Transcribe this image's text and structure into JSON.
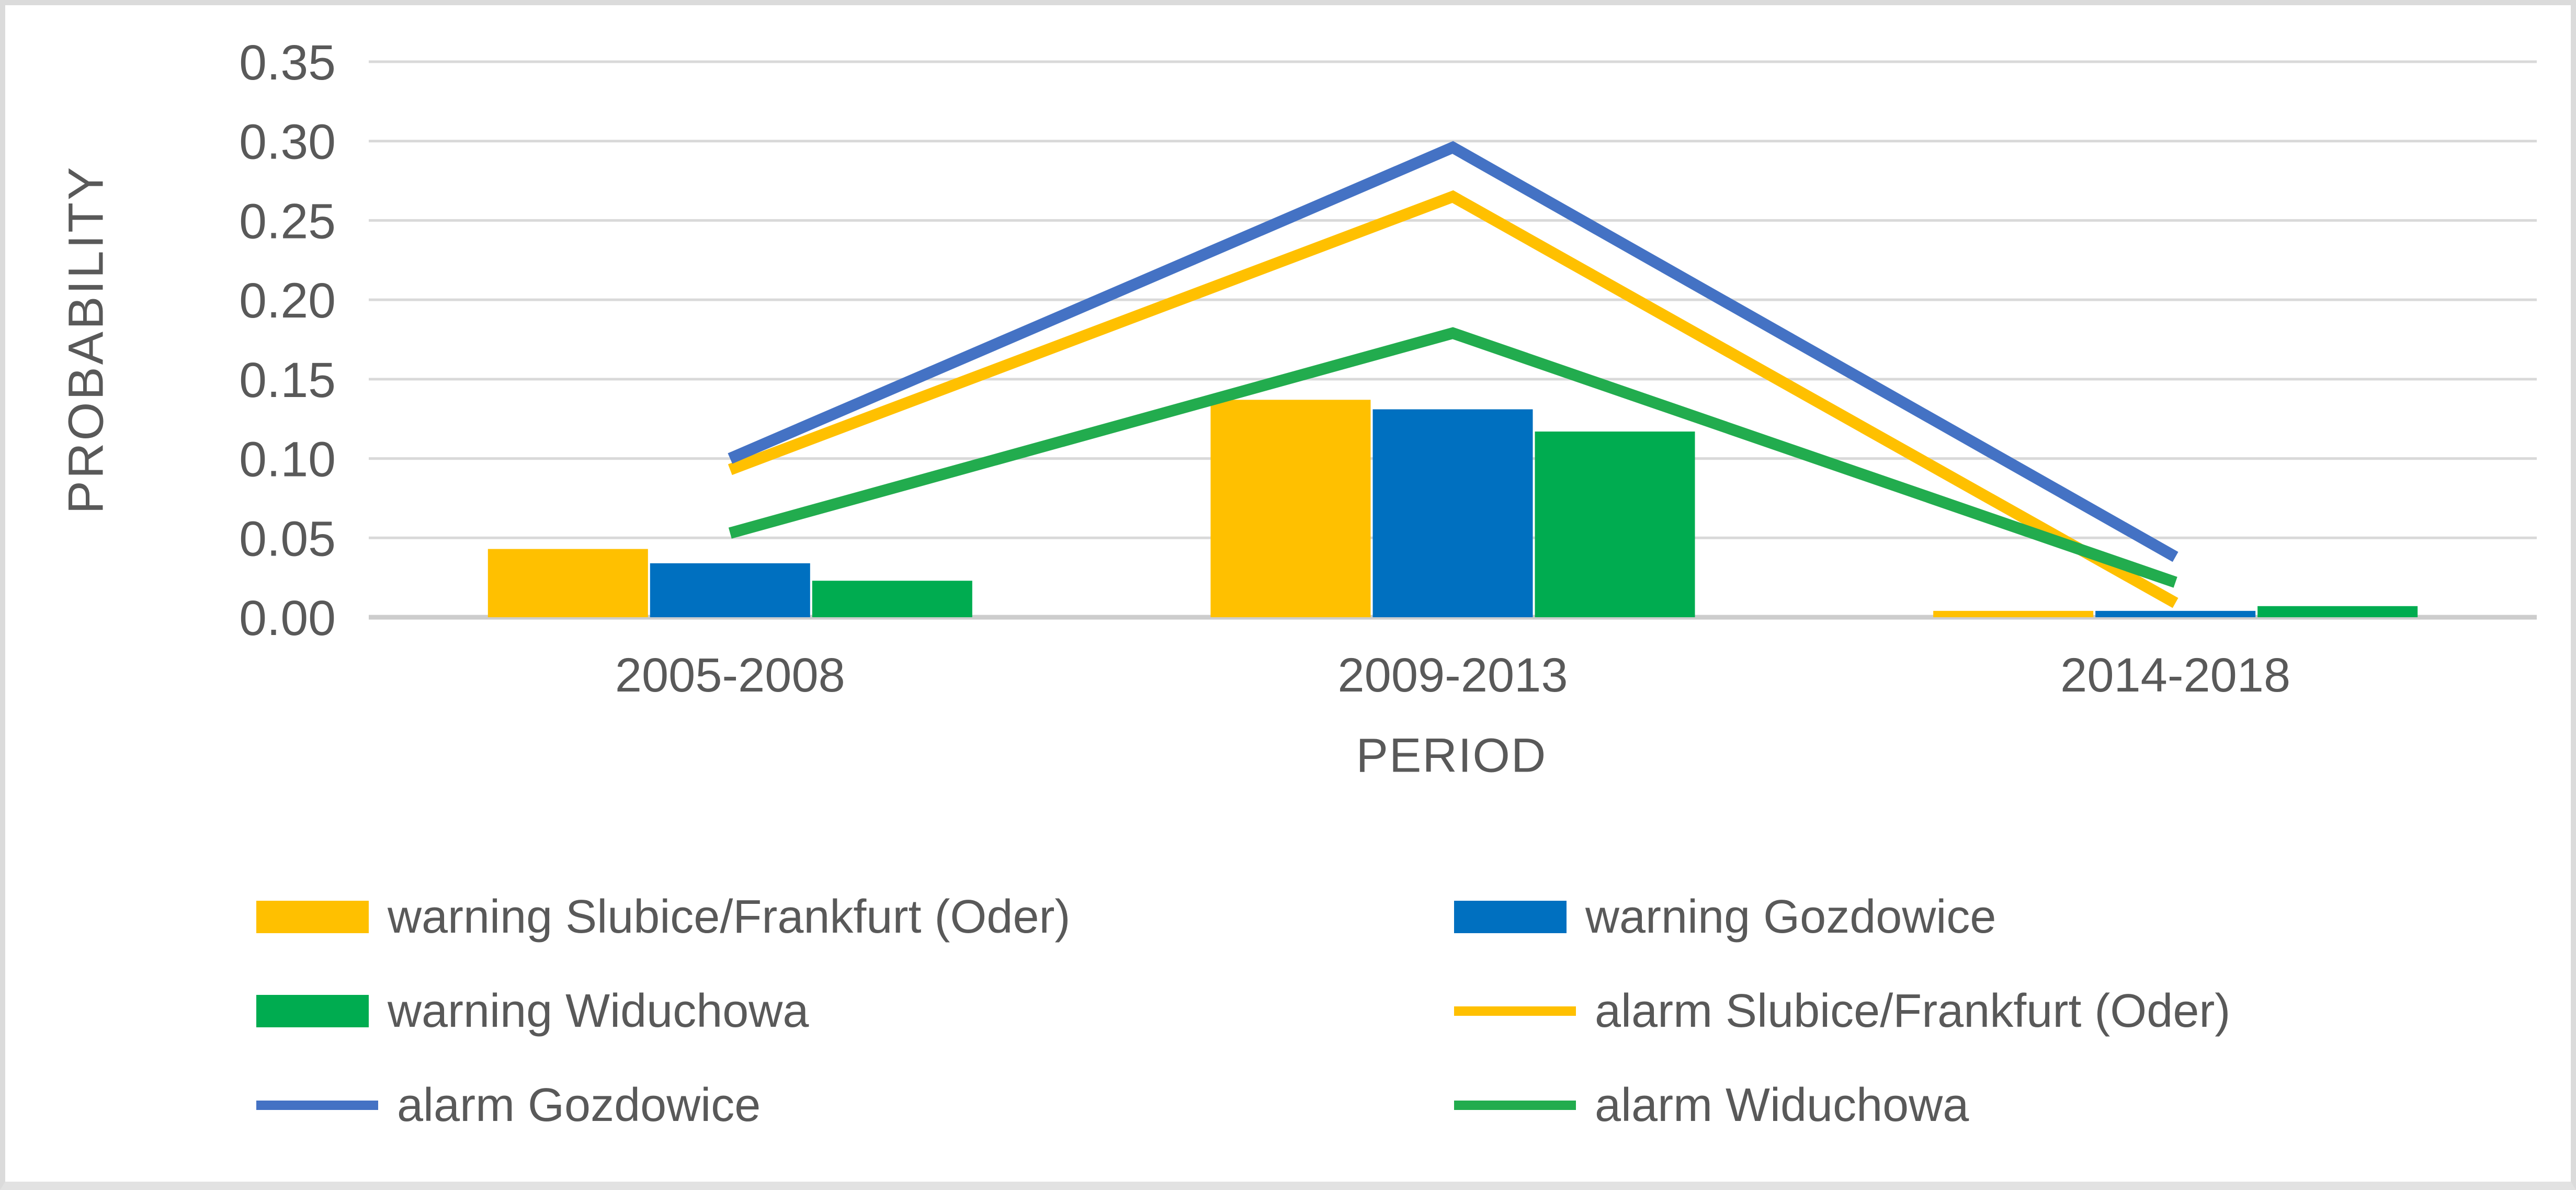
{
  "chart_data": {
    "type": "combo-bar-line",
    "title": "",
    "xlabel": "PERIOD",
    "ylabel": "PROBABILITY",
    "categories": [
      "2005-2008",
      "2009-2013",
      "2014-2018"
    ],
    "series": [
      {
        "name": "warning Slubice/Frankfurt (Oder)",
        "type": "bar",
        "color": "#FFC000",
        "values": [
          0.043,
          0.137,
          0.004
        ]
      },
      {
        "name": "warning Gozdowice",
        "type": "bar",
        "color": "#0070C0",
        "values": [
          0.034,
          0.131,
          0.004
        ]
      },
      {
        "name": "warning Widuchowa",
        "type": "bar",
        "color": "#00AC50",
        "values": [
          0.023,
          0.117,
          0.007
        ]
      },
      {
        "name": "alarm Slubice/Frankfurt (Oder)",
        "type": "line",
        "color": "#FFC000",
        "values": [
          0.093,
          0.265,
          0.009
        ]
      },
      {
        "name": "alarm Gozdowice",
        "type": "line",
        "color": "#4472C4",
        "values": [
          0.1,
          0.296,
          0.038
        ]
      },
      {
        "name": "alarm Widuchowa",
        "type": "line",
        "color": "#22AC4E",
        "values": [
          0.053,
          0.179,
          0.022
        ]
      }
    ],
    "ylim": [
      0,
      0.35
    ],
    "ytick_step": 0.05,
    "ytick_labels": [
      "0.00",
      "0.05",
      "0.10",
      "0.15",
      "0.20",
      "0.25",
      "0.30",
      "0.35"
    ],
    "grid": "horizontal",
    "legend_position": "bottom-two-columns"
  },
  "legend": {
    "items": [
      {
        "label": "warning Slubice/Frankfurt (Oder)",
        "swatch": "bar",
        "color": "#FFC000",
        "col": 0,
        "row": 0
      },
      {
        "label": "warning Gozdowice",
        "swatch": "bar",
        "color": "#0070C0",
        "col": 1,
        "row": 0
      },
      {
        "label": "warning Widuchowa",
        "swatch": "bar",
        "color": "#00AC50",
        "col": 0,
        "row": 1
      },
      {
        "label": "alarm Slubice/Frankfurt (Oder)",
        "swatch": "line",
        "color": "#FFC000",
        "col": 1,
        "row": 1
      },
      {
        "label": "alarm Gozdowice",
        "swatch": "line",
        "color": "#4472C4",
        "col": 0,
        "row": 2
      },
      {
        "label": "alarm Widuchowa",
        "swatch": "line",
        "color": "#22AC4E",
        "col": 1,
        "row": 2
      }
    ]
  },
  "colors": {
    "gridline": "#D9D9D9",
    "axis_baseline": "#CDCDCD",
    "axis_text": "#595959",
    "frame_border": "#DBDBDB",
    "bottom_strip": "#E2E2E2",
    "background": "#FFFFFF"
  }
}
